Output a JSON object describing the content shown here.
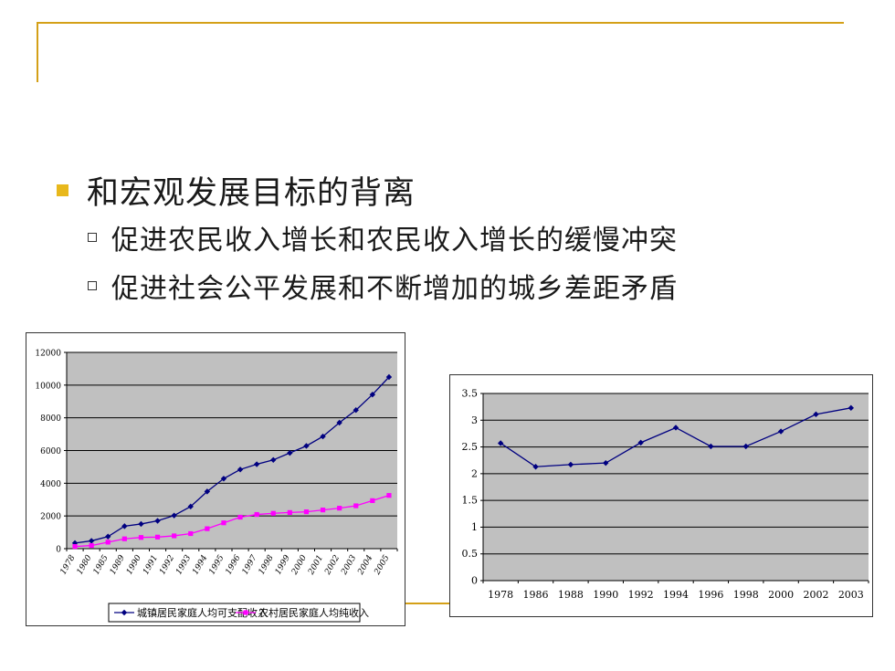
{
  "slide": {
    "heading": "和宏观发展目标的背离",
    "points": [
      "促进农民收入增长和农民收入增长的缓慢冲突",
      "促进社会公平发展和不断增加的城乡差距矛盾"
    ]
  },
  "colors": {
    "accent_line": "#d4a017",
    "bullet": "#e8b81c",
    "plot_bg": "#c0c0c0",
    "urban_series": "#000080",
    "rural_series": "#ff00ff",
    "ratio_series": "#000080"
  },
  "chart_data": [
    {
      "type": "line",
      "title": "",
      "xlabel": "",
      "ylabel": "",
      "grid": true,
      "legend": "bottom",
      "ylim": [
        0,
        12000
      ],
      "yticks": [
        "0",
        "2000",
        "4000",
        "6000",
        "8000",
        "10000",
        "12000"
      ],
      "categories": [
        "1978",
        "1980",
        "1985",
        "1989",
        "1990",
        "1991",
        "1992",
        "1993",
        "1994",
        "1995",
        "1996",
        "1997",
        "1998",
        "1999",
        "2000",
        "2001",
        "2002",
        "2003",
        "2004",
        "2005"
      ],
      "series": [
        {
          "name": "城镇居民家庭人均可支配收入",
          "values": [
            343,
            478,
            739,
            1374,
            1510,
            1701,
            2027,
            2577,
            3496,
            4283,
            4839,
            5160,
            5425,
            5854,
            6280,
            6860,
            7703,
            8472,
            9422,
            10493
          ]
        },
        {
          "name": "农村居民家庭人均纯收入",
          "values": [
            134,
            191,
            398,
            602,
            686,
            709,
            784,
            922,
            1221,
            1578,
            1926,
            2090,
            2162,
            2210,
            2253,
            2366,
            2476,
            2622,
            2936,
            3255
          ]
        }
      ]
    },
    {
      "type": "line",
      "title": "",
      "xlabel": "",
      "ylabel": "",
      "grid": true,
      "legend": "none",
      "ylim": [
        0,
        3.5
      ],
      "yticks": [
        "0",
        "0.5",
        "1",
        "1.5",
        "2",
        "2.5",
        "3",
        "3.5"
      ],
      "categories": [
        "1978",
        "1986",
        "1988",
        "1990",
        "1992",
        "1994",
        "1996",
        "1998",
        "2000",
        "2002",
        "2003"
      ],
      "series": [
        {
          "values": [
            2.57,
            2.13,
            2.17,
            2.2,
            2.58,
            2.86,
            2.51,
            2.51,
            2.79,
            3.11,
            3.23
          ]
        }
      ]
    }
  ]
}
